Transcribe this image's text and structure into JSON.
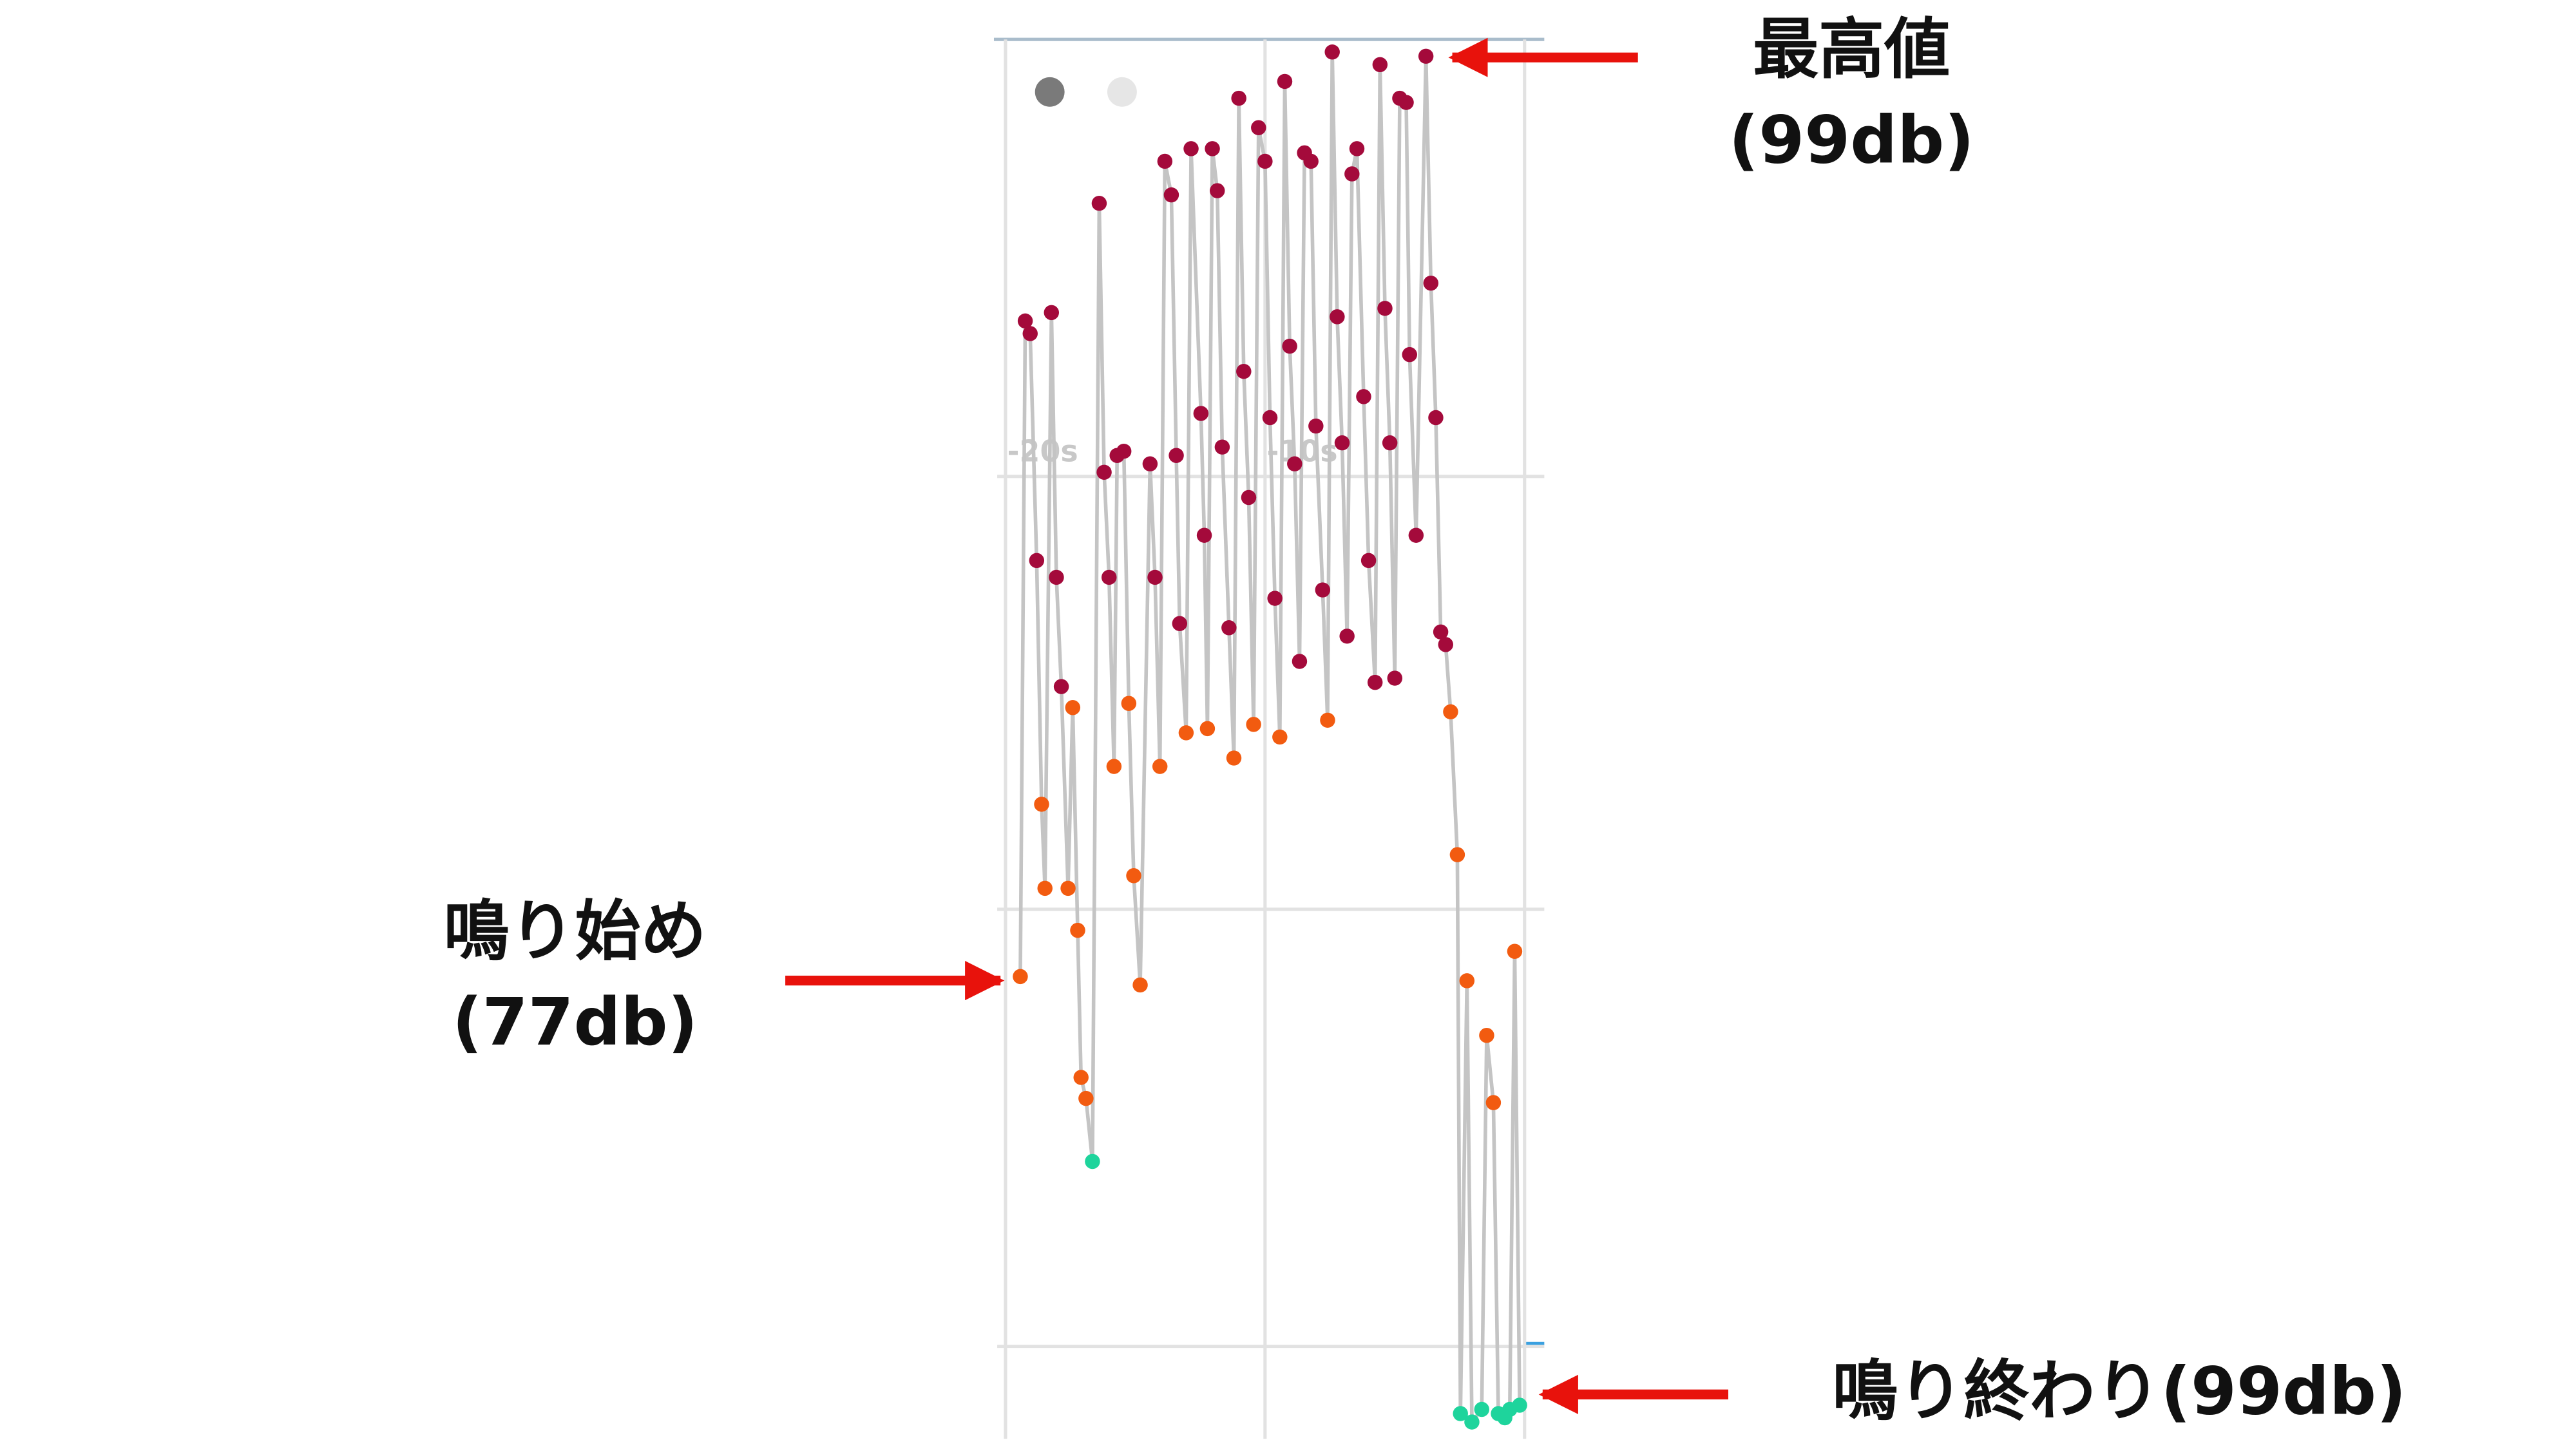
{
  "chart_data": {
    "type": "line",
    "x": [
      -19.43,
      -19.24,
      -19.05,
      -18.8,
      -18.61,
      -18.48,
      -18.23,
      -18.04,
      -17.85,
      -17.59,
      -17.41,
      -17.22,
      -17.09,
      -16.9,
      -16.65,
      -16.39,
      -16.2,
      -16.01,
      -15.82,
      -15.7,
      -15.44,
      -15.25,
      -15.06,
      -14.81,
      -14.43,
      -14.24,
      -14.05,
      -13.86,
      -13.61,
      -13.42,
      -13.29,
      -13.04,
      -12.85,
      -12.47,
      -12.34,
      -12.22,
      -12.03,
      -11.84,
      -11.65,
      -11.39,
      -11.2,
      -11.01,
      -10.82,
      -10.63,
      -10.44,
      -10.25,
      -10.0,
      -9.81,
      -9.62,
      -9.43,
      -9.24,
      -9.05,
      -8.86,
      -8.67,
      -8.48,
      -8.23,
      -8.04,
      -7.78,
      -7.59,
      -7.41,
      -7.22,
      -7.03,
      -6.84,
      -6.65,
      -6.46,
      -6.2,
      -6.01,
      -5.76,
      -5.57,
      -5.38,
      -5.19,
      -5.0,
      -4.81,
      -4.56,
      -4.43,
      -4.18,
      -3.8,
      -3.61,
      -3.42,
      -3.23,
      -3.04,
      -2.85,
      -2.59,
      -2.47,
      -2.22,
      -2.03,
      -1.65,
      -1.46,
      -1.2,
      -1.01,
      -0.76,
      -0.57,
      -0.38,
      -0.19
    ],
    "values": [
      77.0,
      92.6,
      92.3,
      86.9,
      81.1,
      79.1,
      92.8,
      86.5,
      83.9,
      79.1,
      83.4,
      78.1,
      74.6,
      74.1,
      72.6,
      95.4,
      89.0,
      86.5,
      82.0,
      89.4,
      89.5,
      83.5,
      79.4,
      76.8,
      89.2,
      86.5,
      82.0,
      96.4,
      95.6,
      89.4,
      85.4,
      82.8,
      96.7,
      90.4,
      87.5,
      82.9,
      96.7,
      95.7,
      89.6,
      85.3,
      82.2,
      97.9,
      91.4,
      88.4,
      83.0,
      97.2,
      96.4,
      90.3,
      86.0,
      82.7,
      98.3,
      92.0,
      89.2,
      84.5,
      96.6,
      96.4,
      90.1,
      86.2,
      83.1,
      99.0,
      92.7,
      89.7,
      85.1,
      96.1,
      96.7,
      90.8,
      86.9,
      84.0,
      98.7,
      92.9,
      89.7,
      84.1,
      97.9,
      97.8,
      91.8,
      87.5,
      98.9,
      93.5,
      90.3,
      85.2,
      84.9,
      83.3,
      79.9,
      66.6,
      76.9,
      66.4,
      66.7,
      75.6,
      74.0,
      66.6,
      66.5,
      66.7,
      77.6,
      66.8
    ],
    "color": "#c4c4c4",
    "marker_colors": [
      "#1ed49c",
      "#f25b10",
      "#a40a3b"
    ],
    "color_breaks": [
      73,
      83.7
    ],
    "xlim": [
      -20.32,
      0.76
    ],
    "ylim": [
      66.0,
      99.3
    ],
    "xticks": [
      {
        "value": -20,
        "label": "-20s"
      },
      {
        "value": -10,
        "label": "-10s"
      }
    ],
    "xgrid": [
      -20,
      -10,
      0
    ],
    "ygrid": [
      68.2,
      78.6,
      88.9
    ],
    "annotations": [
      [
        "最高値",
        "(99db)"
      ],
      [
        "鳴り始め",
        "(77db)"
      ],
      [
        "鳴り終わり(99db)"
      ]
    ]
  }
}
